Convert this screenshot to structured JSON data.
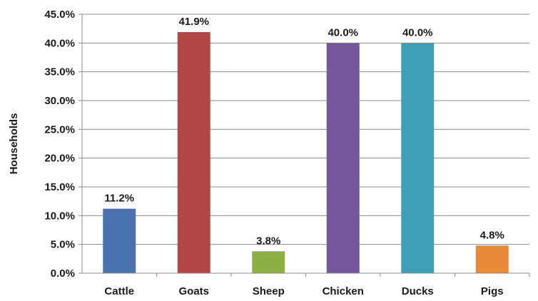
{
  "chart_data": {
    "type": "bar",
    "title": "",
    "xlabel": "",
    "ylabel": "Households",
    "ylim": [
      0,
      45
    ],
    "y_ticks": [
      "0.0%",
      "5.0%",
      "10.0%",
      "15.0%",
      "20.0%",
      "25.0%",
      "30.0%",
      "35.0%",
      "40.0%",
      "45.0%"
    ],
    "categories": [
      "Cattle",
      "Goats",
      "Sheep",
      "Chicken",
      "Ducks",
      "Pigs"
    ],
    "values": [
      11.2,
      41.9,
      3.8,
      40.0,
      40.0,
      4.8
    ],
    "data_labels": [
      "11.2%",
      "41.9%",
      "3.8%",
      "40.0%",
      "40.0%",
      "4.8%"
    ],
    "colors": [
      "#4a72b0",
      "#b04646",
      "#8daf45",
      "#74579a",
      "#3e9fb6",
      "#e88a3a"
    ],
    "grid": true,
    "legend": "none"
  }
}
